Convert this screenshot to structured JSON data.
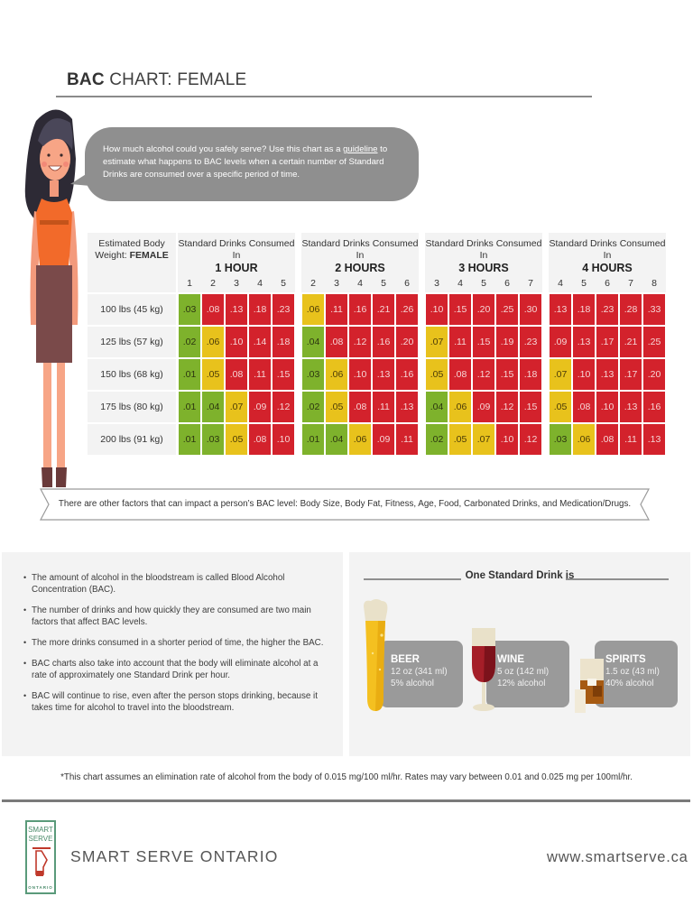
{
  "header": {
    "title_bold": "BAC",
    "title_rest": " CHART: FEMALE"
  },
  "bubble": {
    "text_before": "How much alcohol could you safely serve? Use this chart as a ",
    "link": "guideline",
    "text_after": " to estimate what happens to BAC levels when a certain number of Standard Drinks are consumed over a specific period of time."
  },
  "table": {
    "weight_header_line1": "Estimated Body",
    "weight_header_line2": "Weight: ",
    "weight_header_bold": "FEMALE",
    "weights": [
      "100 lbs (45 kg)",
      "125 lbs (57 kg)",
      "150 lbs (68 kg)",
      "175 lbs (80 kg)",
      "200 lbs (91 kg)"
    ],
    "blocks": [
      {
        "label": "Standard Drinks Consumed In",
        "hours": "1 HOUR",
        "drinks": [
          "1",
          "2",
          "3",
          "4",
          "5"
        ],
        "rows": [
          [
            {
              "v": ".03",
              "c": "g"
            },
            {
              "v": ".08",
              "c": "r"
            },
            {
              "v": ".13",
              "c": "r"
            },
            {
              "v": ".18",
              "c": "r"
            },
            {
              "v": ".23",
              "c": "r"
            }
          ],
          [
            {
              "v": ".02",
              "c": "g"
            },
            {
              "v": ".06",
              "c": "y"
            },
            {
              "v": ".10",
              "c": "r"
            },
            {
              "v": ".14",
              "c": "r"
            },
            {
              "v": ".18",
              "c": "r"
            }
          ],
          [
            {
              "v": ".01",
              "c": "g"
            },
            {
              "v": ".05",
              "c": "y"
            },
            {
              "v": ".08",
              "c": "r"
            },
            {
              "v": ".11",
              "c": "r"
            },
            {
              "v": ".15",
              "c": "r"
            }
          ],
          [
            {
              "v": ".01",
              "c": "g"
            },
            {
              "v": ".04",
              "c": "g"
            },
            {
              "v": ".07",
              "c": "y"
            },
            {
              "v": ".09",
              "c": "r"
            },
            {
              "v": ".12",
              "c": "r"
            }
          ],
          [
            {
              "v": ".01",
              "c": "g"
            },
            {
              "v": ".03",
              "c": "g"
            },
            {
              "v": ".05",
              "c": "y"
            },
            {
              "v": ".08",
              "c": "r"
            },
            {
              "v": ".10",
              "c": "r"
            }
          ]
        ]
      },
      {
        "label": "Standard Drinks Consumed In",
        "hours": "2 HOURS",
        "drinks": [
          "2",
          "3",
          "4",
          "5",
          "6"
        ],
        "rows": [
          [
            {
              "v": ".06",
              "c": "y"
            },
            {
              "v": ".11",
              "c": "r"
            },
            {
              "v": ".16",
              "c": "r"
            },
            {
              "v": ".21",
              "c": "r"
            },
            {
              "v": ".26",
              "c": "r"
            }
          ],
          [
            {
              "v": ".04",
              "c": "g"
            },
            {
              "v": ".08",
              "c": "r"
            },
            {
              "v": ".12",
              "c": "r"
            },
            {
              "v": ".16",
              "c": "r"
            },
            {
              "v": ".20",
              "c": "r"
            }
          ],
          [
            {
              "v": ".03",
              "c": "g"
            },
            {
              "v": ".06",
              "c": "y"
            },
            {
              "v": ".10",
              "c": "r"
            },
            {
              "v": ".13",
              "c": "r"
            },
            {
              "v": ".16",
              "c": "r"
            }
          ],
          [
            {
              "v": ".02",
              "c": "g"
            },
            {
              "v": ".05",
              "c": "y"
            },
            {
              "v": ".08",
              "c": "r"
            },
            {
              "v": ".11",
              "c": "r"
            },
            {
              "v": ".13",
              "c": "r"
            }
          ],
          [
            {
              "v": ".01",
              "c": "g"
            },
            {
              "v": ".04",
              "c": "g"
            },
            {
              "v": ".06",
              "c": "y"
            },
            {
              "v": ".09",
              "c": "r"
            },
            {
              "v": ".11",
              "c": "r"
            }
          ]
        ]
      },
      {
        "label": "Standard Drinks Consumed In",
        "hours": "3 HOURS",
        "drinks": [
          "3",
          "4",
          "5",
          "6",
          "7"
        ],
        "rows": [
          [
            {
              "v": ".10",
              "c": "r"
            },
            {
              "v": ".15",
              "c": "r"
            },
            {
              "v": ".20",
              "c": "r"
            },
            {
              "v": ".25",
              "c": "r"
            },
            {
              "v": ".30",
              "c": "r"
            }
          ],
          [
            {
              "v": ".07",
              "c": "y"
            },
            {
              "v": ".11",
              "c": "r"
            },
            {
              "v": ".15",
              "c": "r"
            },
            {
              "v": ".19",
              "c": "r"
            },
            {
              "v": ".23",
              "c": "r"
            }
          ],
          [
            {
              "v": ".05",
              "c": "y"
            },
            {
              "v": ".08",
              "c": "r"
            },
            {
              "v": ".12",
              "c": "r"
            },
            {
              "v": ".15",
              "c": "r"
            },
            {
              "v": ".18",
              "c": "r"
            }
          ],
          [
            {
              "v": ".04",
              "c": "g"
            },
            {
              "v": ".06",
              "c": "y"
            },
            {
              "v": ".09",
              "c": "r"
            },
            {
              "v": ".12",
              "c": "r"
            },
            {
              "v": ".15",
              "c": "r"
            }
          ],
          [
            {
              "v": ".02",
              "c": "g"
            },
            {
              "v": ".05",
              "c": "y"
            },
            {
              "v": ".07",
              "c": "y"
            },
            {
              "v": ".10",
              "c": "r"
            },
            {
              "v": ".12",
              "c": "r"
            }
          ]
        ]
      },
      {
        "label": "Standard Drinks Consumed In",
        "hours": "4 HOURS",
        "drinks": [
          "4",
          "5",
          "6",
          "7",
          "8"
        ],
        "rows": [
          [
            {
              "v": ".13",
              "c": "r"
            },
            {
              "v": ".18",
              "c": "r"
            },
            {
              "v": ".23",
              "c": "r"
            },
            {
              "v": ".28",
              "c": "r"
            },
            {
              "v": ".33",
              "c": "r"
            }
          ],
          [
            {
              "v": ".09",
              "c": "r"
            },
            {
              "v": ".13",
              "c": "r"
            },
            {
              "v": ".17",
              "c": "r"
            },
            {
              "v": ".21",
              "c": "r"
            },
            {
              "v": ".25",
              "c": "r"
            }
          ],
          [
            {
              "v": ".07",
              "c": "y"
            },
            {
              "v": ".10",
              "c": "r"
            },
            {
              "v": ".13",
              "c": "r"
            },
            {
              "v": ".17",
              "c": "r"
            },
            {
              "v": ".20",
              "c": "r"
            }
          ],
          [
            {
              "v": ".05",
              "c": "y"
            },
            {
              "v": ".08",
              "c": "r"
            },
            {
              "v": ".10",
              "c": "r"
            },
            {
              "v": ".13",
              "c": "r"
            },
            {
              "v": ".16",
              "c": "r"
            }
          ],
          [
            {
              "v": ".03",
              "c": "g"
            },
            {
              "v": ".06",
              "c": "y"
            },
            {
              "v": ".08",
              "c": "r"
            },
            {
              "v": ".11",
              "c": "r"
            },
            {
              "v": ".13",
              "c": "r"
            }
          ]
        ]
      }
    ],
    "colors": {
      "green": "#7eb22c",
      "yellow": "#e8c21c",
      "red": "#d3222c"
    }
  },
  "banner": {
    "text": "There are other factors that can impact a person’s BAC level: Body Size, Body Fat, Fitness, Age, Food, Carbonated Drinks, and Medication/Drugs."
  },
  "facts": [
    "The amount of alcohol in the bloodstream is called Blood Alcohol Concentration (BAC).",
    "The number of drinks and how quickly they are consumed are two main factors that affect BAC levels.",
    "The more drinks consumed in a shorter period of time, the higher the BAC.",
    "BAC charts also take into account that the body will eliminate alcohol at a rate of approximately one Standard Drink per hour.",
    "BAC will continue to rise, even after the person stops drinking, because it takes time for alcohol to travel into the bloodstream."
  ],
  "standard_drink": {
    "heading": "One Standard Drink is",
    "drinks": [
      {
        "name": "BEER",
        "volume": "12 oz (341 ml)",
        "abv": "5% alcohol"
      },
      {
        "name": "WINE",
        "volume": "5 oz (142 ml)",
        "abv": "12% alcohol"
      },
      {
        "name": "SPIRITS",
        "volume": "1.5 oz (43 ml)",
        "abv": "40% alcohol"
      }
    ]
  },
  "footnote": "*This chart assumes an elimination rate of alcohol from the body of 0.015 mg/100 ml/hr. Rates may vary between 0.01 and 0.025 mg per 100ml/hr.",
  "footer": {
    "logo_line1": "SMART",
    "logo_line2": "SERVE",
    "logo_line3": "ONTARIO",
    "brand": "SMART SERVE ONTARIO",
    "url": "www.smartserve.ca"
  }
}
